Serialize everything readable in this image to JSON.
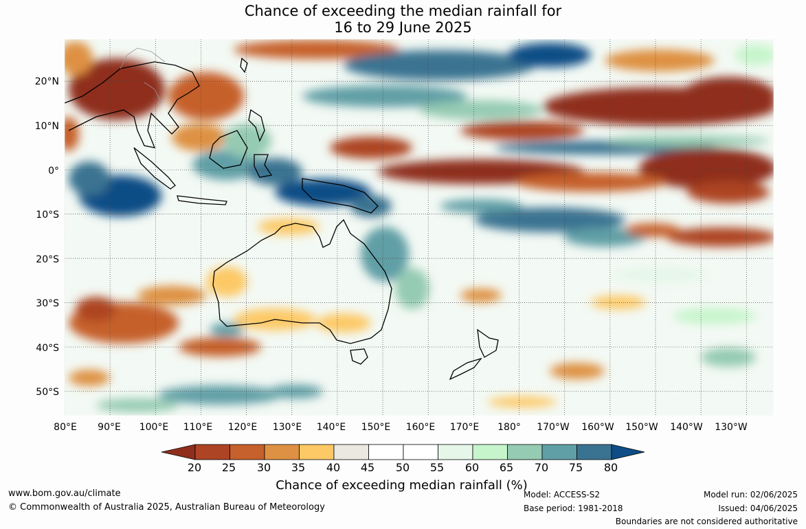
{
  "title": {
    "line1": "Chance of exceeding the median rainfall for",
    "line2": "16 to 29 June 2025"
  },
  "map": {
    "lat_labels": [
      "20°N",
      "10°N",
      "0°",
      "10°S",
      "20°S",
      "30°S",
      "40°S",
      "50°S"
    ],
    "lat_values": [
      20,
      10,
      0,
      -10,
      -20,
      -30,
      -40,
      -50
    ],
    "lon_labels": [
      "80°E",
      "90°E",
      "100°E",
      "110°E",
      "120°E",
      "130°E",
      "140°E",
      "150°E",
      "160°E",
      "170°E",
      "180°",
      "170°W",
      "160°W",
      "150°W",
      "140°W",
      "130°W"
    ],
    "lon_values": [
      80,
      90,
      100,
      110,
      120,
      130,
      140,
      150,
      160,
      170,
      180,
      190,
      200,
      210,
      220,
      230
    ],
    "lon_range": [
      80,
      236
    ],
    "lat_range": [
      -55.5,
      29.5
    ]
  },
  "colorbar": {
    "ticks": [
      "20",
      "25",
      "30",
      "35",
      "40",
      "45",
      "50",
      "55",
      "60",
      "65",
      "70",
      "75",
      "80"
    ],
    "colors": [
      "#8f2e1c",
      "#ad4424",
      "#c6602c",
      "#de9142",
      "#fdc966",
      "#ebe7e1",
      "#ffffff",
      "#ffffff",
      "#e6f7e9",
      "#c6f5cb",
      "#95cbb2",
      "#609fa6",
      "#3a7391",
      "#0e4d86"
    ],
    "title": "Chance of exceeding median rainfall (%)"
  },
  "footer": {
    "url": "www.bom.gov.au/climate",
    "copyright": "© Commonwealth of Australia 2025, Australian Bureau of Meteorology",
    "model": "Model: ACCESS-S2",
    "base_period": "Base period: 1981-2018",
    "model_run": "Model run: 02/06/2025",
    "issued": "Issued: 04/06/2025",
    "disclaimer": "Boundaries are not considered authoritative"
  }
}
